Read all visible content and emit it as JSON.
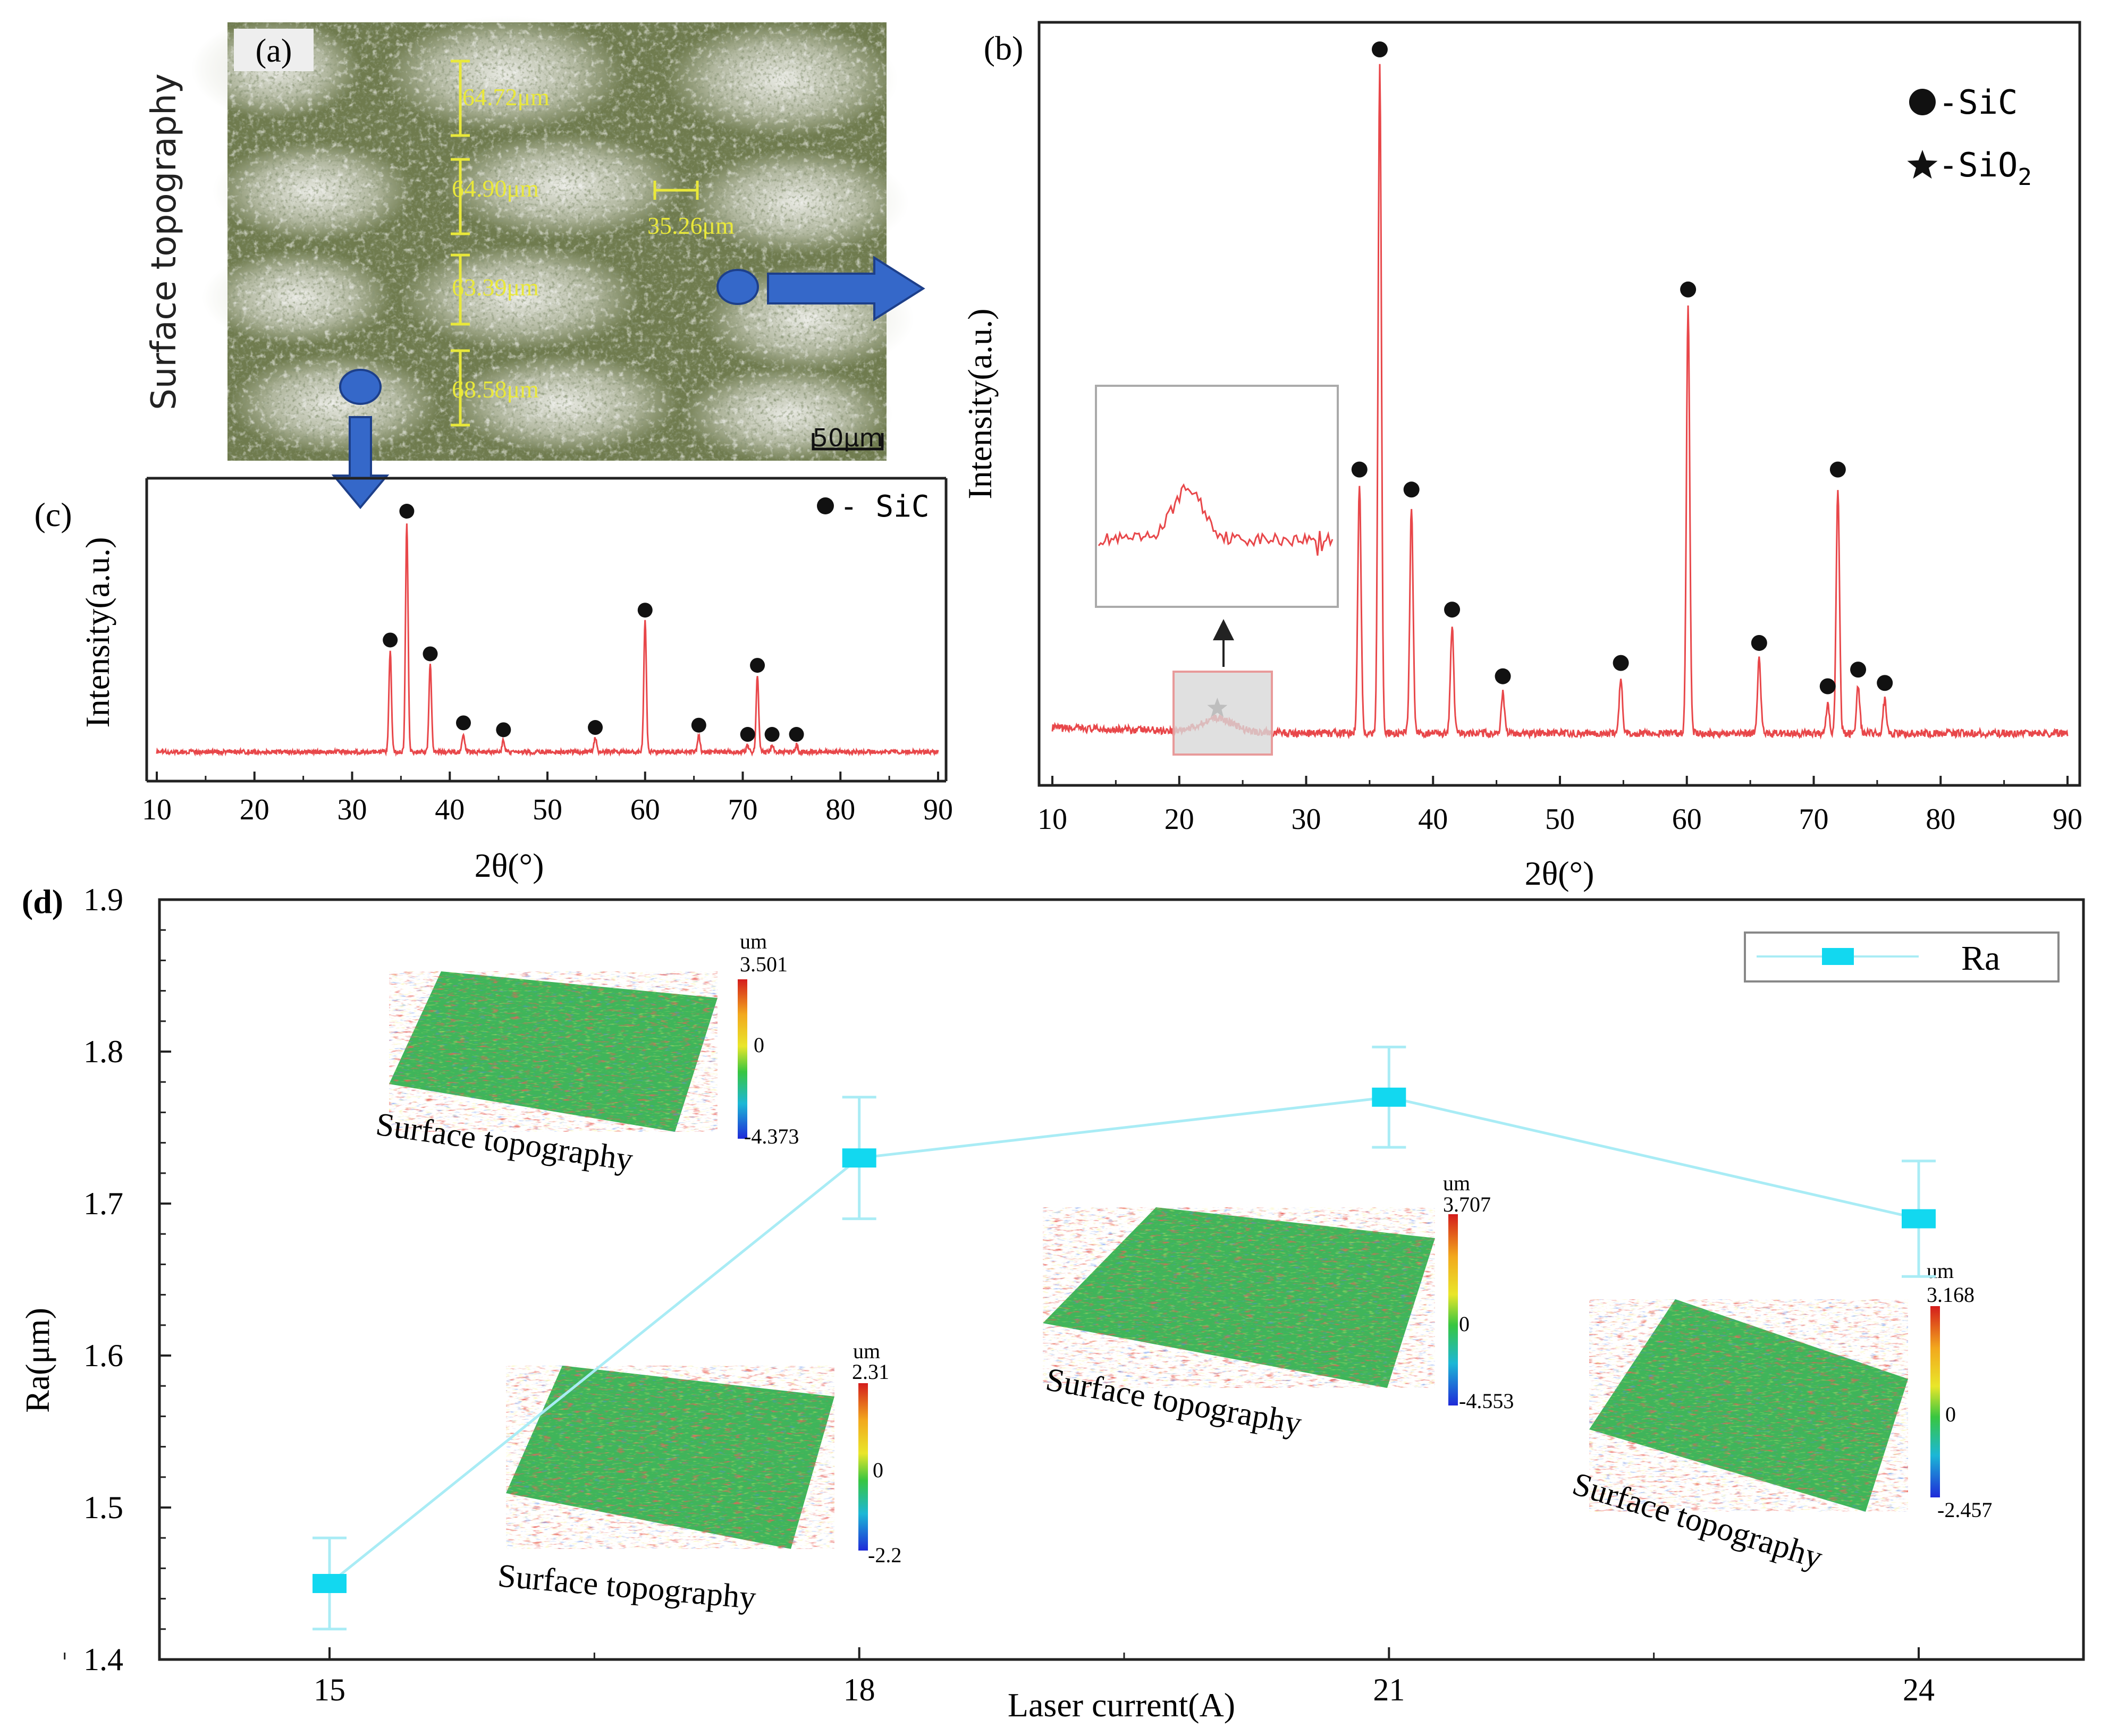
{
  "panel_labels": {
    "a": "(a)",
    "b": "(b)",
    "c": "(c)",
    "d": "(d)"
  },
  "micrograph": {
    "side_label": "Surface topography",
    "measurements": [
      "64.72μm",
      "64.90μm",
      "35.26μm",
      "63.39μm",
      "68.58μm"
    ],
    "scale_bar": "50μm"
  },
  "colors": {
    "xrd_line": "#e8474a",
    "ra_line": "#a9ecf5",
    "ra_marker": "#12d8f0",
    "arrow": "#3568c9"
  },
  "chart_data": [
    {
      "id": "b",
      "type": "line",
      "title": "",
      "xlabel": "2θ(°)",
      "ylabel": "Intensity(a.u.)",
      "xlim": [
        10,
        90
      ],
      "xticks": [
        "10",
        "20",
        "30",
        "40",
        "50",
        "60",
        "70",
        "80",
        "90"
      ],
      "peaks": [
        {
          "x": 23,
          "h": 0.02,
          "phase": "SiO2"
        },
        {
          "x": 34.2,
          "h": 0.37
        },
        {
          "x": 35.8,
          "h": 1.0
        },
        {
          "x": 38.3,
          "h": 0.34
        },
        {
          "x": 41.5,
          "h": 0.16
        },
        {
          "x": 45.5,
          "h": 0.06
        },
        {
          "x": 54.8,
          "h": 0.08
        },
        {
          "x": 60.1,
          "h": 0.64
        },
        {
          "x": 65.7,
          "h": 0.11
        },
        {
          "x": 71.1,
          "h": 0.045
        },
        {
          "x": 71.9,
          "h": 0.37
        },
        {
          "x": 73.5,
          "h": 0.07
        },
        {
          "x": 75.6,
          "h": 0.05
        }
      ],
      "legend": [
        {
          "symbol": "circle",
          "label": "-SiC"
        },
        {
          "symbol": "star",
          "label": "-SiO",
          "sub": "2"
        }
      ]
    },
    {
      "id": "c",
      "type": "line",
      "title": "",
      "xlabel": "2θ(°)",
      "ylabel": "Intensity(a.u.)",
      "xlim": [
        10,
        90
      ],
      "xticks": [
        "10",
        "20",
        "30",
        "40",
        "50",
        "60",
        "70",
        "80",
        "90"
      ],
      "peaks": [
        {
          "x": 33.9,
          "h": 0.44
        },
        {
          "x": 35.6,
          "h": 1.0
        },
        {
          "x": 38.0,
          "h": 0.38
        },
        {
          "x": 41.4,
          "h": 0.08
        },
        {
          "x": 45.5,
          "h": 0.05
        },
        {
          "x": 54.9,
          "h": 0.06
        },
        {
          "x": 60.0,
          "h": 0.57
        },
        {
          "x": 65.5,
          "h": 0.07
        },
        {
          "x": 70.5,
          "h": 0.03
        },
        {
          "x": 71.5,
          "h": 0.33
        },
        {
          "x": 73.0,
          "h": 0.03
        },
        {
          "x": 75.5,
          "h": 0.03
        }
      ],
      "legend": [
        {
          "symbol": "circle",
          "label": "- SiC"
        }
      ]
    },
    {
      "id": "d",
      "type": "line",
      "title": "",
      "xlabel": "Laser current(A)",
      "ylabel": "Ra(μm)",
      "x": [
        15,
        18,
        21,
        24
      ],
      "xticks": [
        "15",
        "18",
        "21",
        "24"
      ],
      "ylim": [
        1.4,
        1.9
      ],
      "yticks": [
        "1.4",
        "1.5",
        "1.6",
        "1.7",
        "1.8",
        "1.9"
      ],
      "series": [
        {
          "name": "Ra",
          "values": [
            1.45,
            1.73,
            1.77,
            1.69
          ],
          "errors": [
            0.03,
            0.04,
            0.033,
            0.038
          ]
        }
      ],
      "insets": [
        {
          "caption": "Surface topography",
          "unit": "um",
          "max": "3.501",
          "mid": "0",
          "min": "-4.373"
        },
        {
          "caption": "Surface topography",
          "unit": "um",
          "max": "2.31",
          "mid": "0",
          "min": "-2.2"
        },
        {
          "caption": "Surface topography",
          "unit": "um",
          "max": "3.707",
          "mid": "0",
          "min": "-4.553"
        },
        {
          "caption": "Surface topography",
          "unit": "um",
          "max": "3.168",
          "mid": "0",
          "min": "-2.457"
        }
      ]
    }
  ]
}
